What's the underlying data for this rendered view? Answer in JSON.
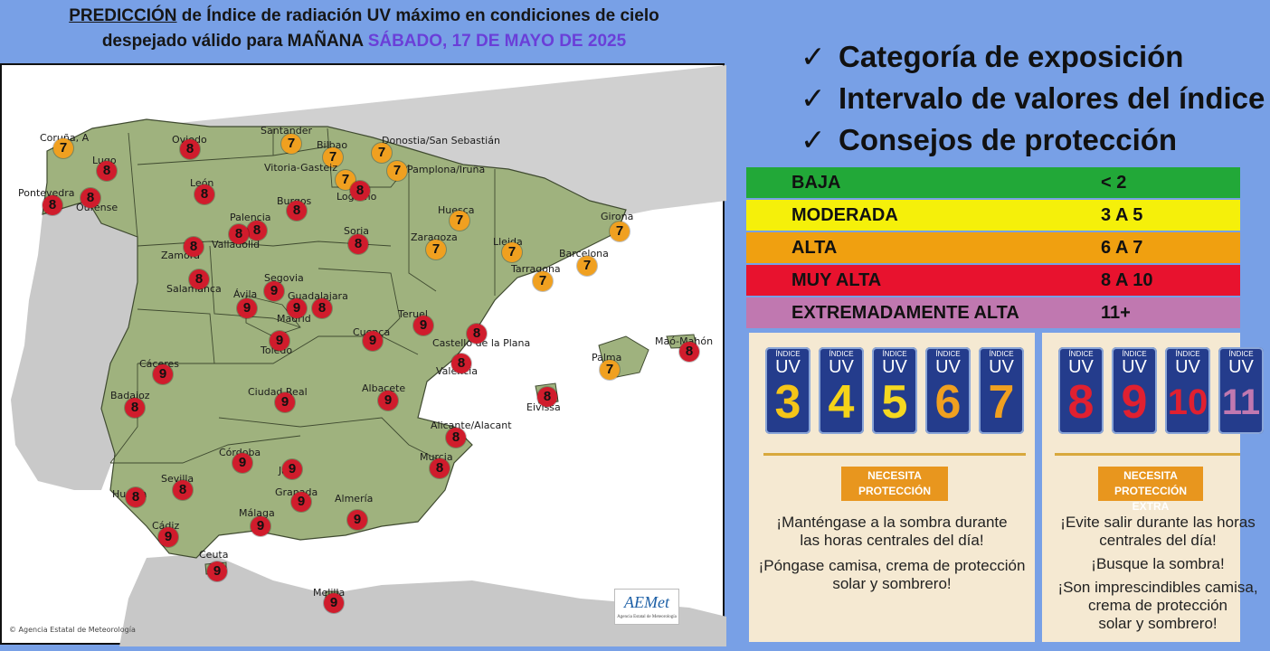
{
  "title": {
    "underlined": "PREDICCIÓN",
    "line1_rest": " de Índice de radiación UV máximo en condiciones de cielo",
    "line2": "despejado válido para MAÑANA ",
    "date": "SÁBADO, 17 DE MAYO DE 2025"
  },
  "colors": {
    "baja": "#22a838",
    "moderada": "#f5f00a",
    "alta": "#f0a010",
    "muy_alta": "#e8122e",
    "extremadamente_alta": "#c078b0",
    "badge7": "#f0a020",
    "badge8": "#d01c2c",
    "badge9": "#d01c2c",
    "land": "#9fb27e",
    "sea": "#ffffff",
    "africa": "#c8c8c8"
  },
  "checklist": [
    {
      "icon": "check-icon",
      "text": "Categoría de exposición"
    },
    {
      "icon": "check-icon",
      "text": "Intervalo de valores del índice"
    },
    {
      "icon": "check-icon",
      "text": "Consejos de protección"
    }
  ],
  "categories": [
    {
      "name": "BAJA",
      "range": "< 2",
      "color": "#22a838"
    },
    {
      "name": "MODERADA",
      "range": "3 A 5",
      "color": "#f5f00a"
    },
    {
      "name": "ALTA",
      "range": "6 A 7",
      "color": "#f0a010"
    },
    {
      "name": "MUY ALTA",
      "range": "8 A 10",
      "color": "#e8122e"
    },
    {
      "name": "EXTREMADAMENTE ALTA",
      "range": "11+",
      "color": "#c078b0"
    }
  ],
  "tile_label": {
    "indice": "ÍNDICE",
    "uv": "UV"
  },
  "panel1": {
    "tiles": [
      {
        "num": "3",
        "color": "#f5c518"
      },
      {
        "num": "4",
        "color": "#f5d418"
      },
      {
        "num": "5",
        "color": "#f5d820"
      },
      {
        "num": "6",
        "color": "#f0a020"
      },
      {
        "num": "7",
        "color": "#f0a020"
      }
    ],
    "tag": "NECESITA PROTECCIÓN",
    "advice": [
      "¡Manténgase a la sombra durante",
      "las horas centrales del día!",
      "¡Póngase camisa, crema de protección",
      "solar y sombrero!"
    ]
  },
  "panel2": {
    "tiles": [
      {
        "num": "8",
        "color": "#e02030"
      },
      {
        "num": "9",
        "color": "#e02030"
      },
      {
        "num": "10",
        "color": "#e02030"
      },
      {
        "num": "11",
        "color": "#c078b0"
      }
    ],
    "tag": "NECESITA PROTECCIÓN EXTRA",
    "advice": [
      "¡Evite salir durante las horas",
      "centrales del día!",
      "¡Busque la sombra!",
      "¡Son imprescindibles camisa,",
      "crema de protección",
      "solar y sombrero!"
    ]
  },
  "footer": "© Agencia Estatal de Meteorología",
  "logo": {
    "text": "AEMet",
    "sub": "Agencia Estatal de Meteorología"
  },
  "cities": [
    {
      "name": "Coruña, A",
      "uv": 7
    },
    {
      "name": "Lugo",
      "uv": 8
    },
    {
      "name": "Oviedo",
      "uv": 8
    },
    {
      "name": "Santander",
      "uv": 7
    },
    {
      "name": "Bilbao",
      "uv": 7
    },
    {
      "name": "Donostia/San Sebastián",
      "uv": 7
    },
    {
      "name": "Vitoria-Gasteiz",
      "uv": 7
    },
    {
      "name": "Pamplona/Iruña",
      "uv": 7
    },
    {
      "name": "Pontevedra",
      "uv": 8
    },
    {
      "name": "Ourense",
      "uv": 8
    },
    {
      "name": "León",
      "uv": 8
    },
    {
      "name": "Burgos",
      "uv": 8
    },
    {
      "name": "Logroño",
      "uv": 8
    },
    {
      "name": "Huesca",
      "uv": 7
    },
    {
      "name": "Girona",
      "uv": 7
    },
    {
      "name": "Palencia",
      "uv": 8
    },
    {
      "name": "Valladolid",
      "uv": 8
    },
    {
      "name": "Soria",
      "uv": 8
    },
    {
      "name": "Zaragoza",
      "uv": 7
    },
    {
      "name": "Lleida",
      "uv": 7
    },
    {
      "name": "Barcelona",
      "uv": 7
    },
    {
      "name": "Tarragona",
      "uv": 7
    },
    {
      "name": "Zamora",
      "uv": 8
    },
    {
      "name": "Salamanca",
      "uv": 8
    },
    {
      "name": "Segovia",
      "uv": 9
    },
    {
      "name": "Ávila",
      "uv": 9
    },
    {
      "name": "Guadalajara",
      "uv": 8
    },
    {
      "name": "Madrid",
      "uv": 9
    },
    {
      "name": "Teruel",
      "uv": 9
    },
    {
      "name": "Cuenca",
      "uv": 9
    },
    {
      "name": "Toledo",
      "uv": 9
    },
    {
      "name": "Castelló de la Plana",
      "uv": 8
    },
    {
      "name": "Valencia",
      "uv": 8
    },
    {
      "name": "Palma",
      "uv": 7
    },
    {
      "name": "Maó-Mahón",
      "uv": 8
    },
    {
      "name": "Cáceres",
      "uv": 9
    },
    {
      "name": "Badajoz",
      "uv": 8
    },
    {
      "name": "Ciudad Real",
      "uv": 9
    },
    {
      "name": "Albacete",
      "uv": 9
    },
    {
      "name": "Eivissa",
      "uv": 8
    },
    {
      "name": "Alicante/Alacant",
      "uv": 8
    },
    {
      "name": "Murcia",
      "uv": 8
    },
    {
      "name": "Córdoba",
      "uv": 9
    },
    {
      "name": "Jaén",
      "uv": 9
    },
    {
      "name": "Sevilla",
      "uv": 8
    },
    {
      "name": "Huelva",
      "uv": 8
    },
    {
      "name": "Granada",
      "uv": 9
    },
    {
      "name": "Almería",
      "uv": 9
    },
    {
      "name": "Málaga",
      "uv": 9
    },
    {
      "name": "Cádiz",
      "uv": 9
    },
    {
      "name": "Ceuta",
      "uv": 9
    },
    {
      "name": "Melilla",
      "uv": 9
    }
  ]
}
